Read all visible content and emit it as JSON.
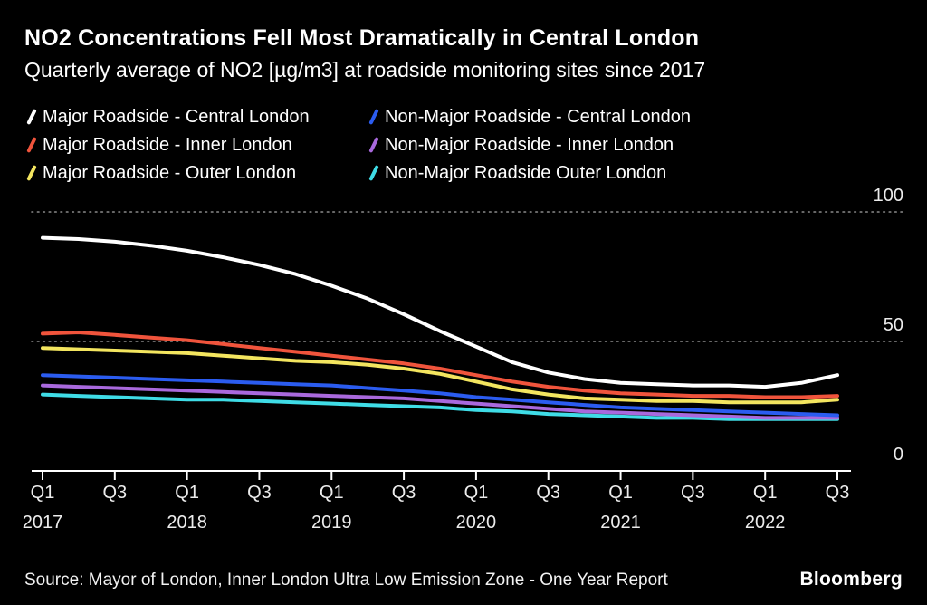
{
  "header": {
    "title": "NO2 Concentrations Fell Most Dramatically in Central London",
    "subtitle": "Quarterly average of NO2 [µg/m3] at roadside monitoring sites since 2017"
  },
  "footer": {
    "source": "Source: Mayor of London, Inner London Ultra Low Emission Zone - One Year Report",
    "logo": "Bloomberg"
  },
  "colors": {
    "background": "#000000",
    "grid_dotted": "#8a8a8a",
    "axis_line": "#ffffff",
    "axis_text": "#ececec"
  },
  "chart_data": {
    "type": "line",
    "title": "NO2 Concentrations Fell Most Dramatically in Central London",
    "subtitle": "Quarterly average of NO2 [µg/m3] at roadside monitoring sites since 2017",
    "xlabel": "",
    "ylabel": "NO2 µg/m3",
    "ylim": [
      0,
      100
    ],
    "grid": "dotted horizontal lines at 50 and 100, solid baseline at 0",
    "legend_position": "top-left, two columns",
    "categories": [
      "2017 Q1",
      "2017 Q2",
      "2017 Q3",
      "2017 Q4",
      "2018 Q1",
      "2018 Q2",
      "2018 Q3",
      "2018 Q4",
      "2019 Q1",
      "2019 Q2",
      "2019 Q3",
      "2019 Q4",
      "2020 Q1",
      "2020 Q2",
      "2020 Q3",
      "2020 Q4",
      "2021 Q1",
      "2021 Q2",
      "2021 Q3",
      "2021 Q4",
      "2022 Q1",
      "2022 Q2",
      "2022 Q3"
    ],
    "series": [
      {
        "name": "Major Roadside - Central London",
        "color": "#ffffff",
        "values": [
          90,
          89.5,
          88.5,
          87,
          85,
          82.5,
          79.5,
          76,
          71.5,
          66.5,
          60.5,
          54,
          48,
          42,
          38,
          35.5,
          34,
          33.5,
          33,
          33,
          32.5,
          34,
          37
        ]
      },
      {
        "name": "Non-Major Roadside - Central London",
        "color": "#2b5cf0",
        "values": [
          37,
          36.5,
          36,
          35.5,
          35,
          34.5,
          34,
          33.5,
          33,
          32,
          31,
          30,
          28.5,
          27.5,
          26.5,
          25.5,
          24.5,
          24,
          23.5,
          23,
          22.5,
          22,
          21.5
        ]
      },
      {
        "name": "Major Roadside - Inner London",
        "color": "#f0543c",
        "values": [
          53,
          53.5,
          52.5,
          51.5,
          50.5,
          49,
          47.5,
          46,
          44.5,
          43,
          41.5,
          39.5,
          37,
          34.5,
          32.5,
          31,
          30,
          29.5,
          29,
          29,
          28.5,
          28.5,
          29
        ]
      },
      {
        "name": "Non-Major Roadside - Inner London",
        "color": "#a969dd",
        "values": [
          33,
          32.5,
          32,
          31.5,
          31,
          30.5,
          30,
          29.5,
          29,
          28.5,
          28,
          27,
          26,
          25,
          24,
          23,
          22.5,
          22,
          21.5,
          21,
          20.5,
          20.5,
          20.5
        ]
      },
      {
        "name": "Major Roadside - Outer London",
        "color": "#f3e55f",
        "values": [
          47.5,
          47,
          46.5,
          46,
          45.5,
          44.5,
          43.5,
          42.5,
          42,
          41,
          39.5,
          37.5,
          34.5,
          31.5,
          29.5,
          28,
          27.5,
          27,
          27,
          26.5,
          26.5,
          26.5,
          27.5
        ]
      },
      {
        "name": "Non-Major Roadside Outer London",
        "color": "#3fdce6",
        "values": [
          29.5,
          29,
          28.5,
          28,
          27.5,
          27.5,
          27,
          26.5,
          26,
          25.5,
          25,
          24.5,
          23.5,
          23,
          22,
          21.5,
          21,
          20.5,
          20.5,
          20,
          20,
          20,
          20
        ]
      }
    ],
    "y_axis": {
      "side": "right",
      "ticks": [
        100,
        50,
        0
      ]
    },
    "x_axis": {
      "ticks": [
        {
          "i": 0,
          "label": "Q1",
          "year": "2017"
        },
        {
          "i": 2,
          "label": "Q3"
        },
        {
          "i": 4,
          "label": "Q1",
          "year": "2018"
        },
        {
          "i": 6,
          "label": "Q3"
        },
        {
          "i": 8,
          "label": "Q1",
          "year": "2019"
        },
        {
          "i": 10,
          "label": "Q3"
        },
        {
          "i": 12,
          "label": "Q1",
          "year": "2020"
        },
        {
          "i": 14,
          "label": "Q3"
        },
        {
          "i": 16,
          "label": "Q1",
          "year": "2021"
        },
        {
          "i": 18,
          "label": "Q3"
        },
        {
          "i": 20,
          "label": "Q1",
          "year": "2022"
        },
        {
          "i": 22,
          "label": "Q3"
        }
      ]
    }
  }
}
